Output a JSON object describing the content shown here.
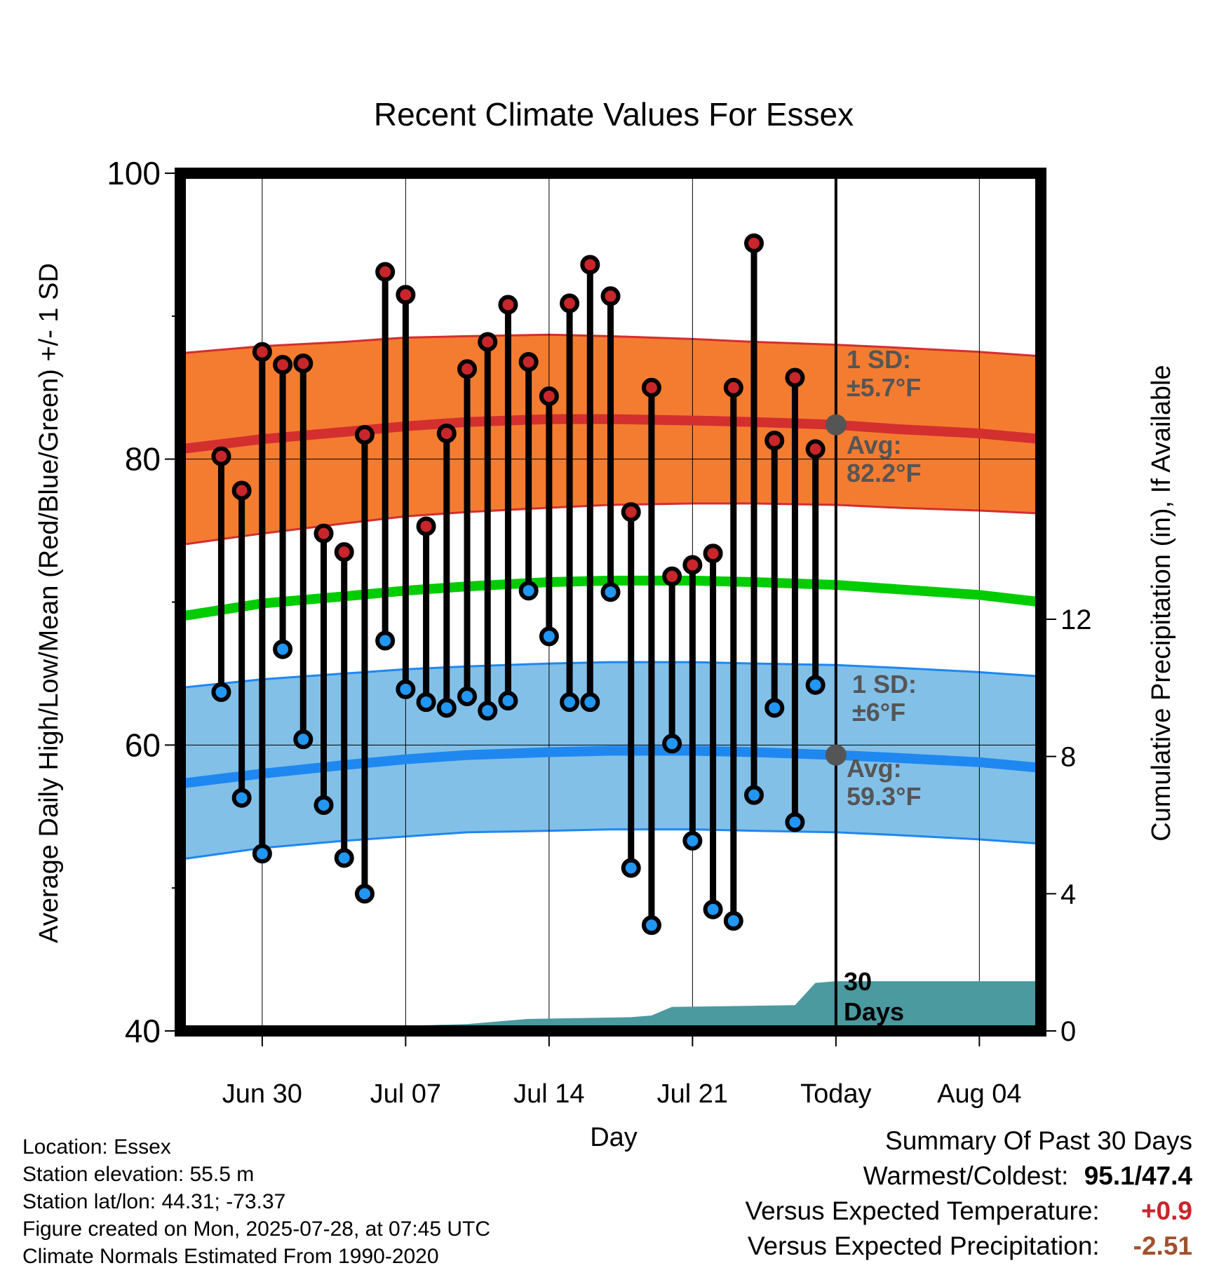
{
  "chart_data": {
    "type": "line",
    "title": "Recent Climate Values For Essex",
    "xlabel": "Day",
    "ylabel": "Average Daily High/Low/Mean (Red/Blue/Green) +/- 1 SD",
    "y2label": "Cumulative Precipitation (in), If Available",
    "ylim": [
      40,
      100
    ],
    "y2lim": [
      0,
      25
    ],
    "xlim": [
      "2025-06-26",
      "2025-08-07"
    ],
    "yticks": [
      "100",
      "80",
      "60",
      "40"
    ],
    "y2ticks": [
      "12",
      "8",
      "4",
      "0"
    ],
    "xticks": [
      {
        "date": "2025-06-30",
        "label": "Jun 30"
      },
      {
        "date": "2025-07-07",
        "label": "Jul 07"
      },
      {
        "date": "2025-07-14",
        "label": "Jul 14"
      },
      {
        "date": "2025-07-21",
        "label": "Jul 21"
      },
      {
        "date": "2025-07-28",
        "label": "Today"
      },
      {
        "date": "2025-08-04",
        "label": "Aug 04"
      }
    ],
    "today": "2025-07-28",
    "grid": true,
    "normals": {
      "dates": [
        "2025-06-26",
        "2025-06-30",
        "2025-07-04",
        "2025-07-07",
        "2025-07-10",
        "2025-07-14",
        "2025-07-17",
        "2025-07-21",
        "2025-07-24",
        "2025-07-28",
        "2025-07-31",
        "2025-08-04",
        "2025-08-07"
      ],
      "high_avg": [
        80.7,
        81.4,
        81.9,
        82.3,
        82.6,
        82.8,
        82.8,
        82.7,
        82.6,
        82.4,
        82.1,
        81.8,
        81.4
      ],
      "high_sd_upper": [
        87.4,
        87.9,
        88.2,
        88.5,
        88.6,
        88.7,
        88.6,
        88.4,
        88.2,
        88.0,
        87.8,
        87.5,
        87.2
      ],
      "high_sd_lower": [
        74.0,
        74.8,
        75.5,
        76.0,
        76.3,
        76.6,
        76.8,
        76.9,
        76.9,
        76.8,
        76.6,
        76.4,
        76.2
      ],
      "mean_avg": [
        69.0,
        69.9,
        70.4,
        70.8,
        71.1,
        71.4,
        71.5,
        71.5,
        71.4,
        71.2,
        70.9,
        70.5,
        70.0
      ],
      "low_avg": [
        57.3,
        58.0,
        58.6,
        59.0,
        59.3,
        59.5,
        59.6,
        59.6,
        59.5,
        59.3,
        59.1,
        58.8,
        58.4
      ],
      "low_sd_upper": [
        64.0,
        64.6,
        65.0,
        65.3,
        65.5,
        65.7,
        65.8,
        65.8,
        65.7,
        65.6,
        65.4,
        65.1,
        64.8
      ],
      "low_sd_lower": [
        52.0,
        52.8,
        53.3,
        53.6,
        53.9,
        54.0,
        54.1,
        54.1,
        54.0,
        53.9,
        53.7,
        53.4,
        53.1
      ]
    },
    "annotations": {
      "high_sd_line1": "1 SD:",
      "high_sd_line2": "±5.7°F",
      "high_avg_line1": "Avg:",
      "high_avg_line2": "82.2°F",
      "low_sd_line1": "1 SD:",
      "low_sd_line2": "±6°F",
      "low_avg_line1": "Avg:",
      "low_avg_line2": "59.3°F",
      "precip_line1": "30",
      "precip_line2": "Days"
    },
    "daily": {
      "dates": [
        "2025-06-28",
        "2025-06-29",
        "2025-06-30",
        "2025-07-01",
        "2025-07-02",
        "2025-07-03",
        "2025-07-04",
        "2025-07-05",
        "2025-07-06",
        "2025-07-07",
        "2025-07-08",
        "2025-07-09",
        "2025-07-10",
        "2025-07-11",
        "2025-07-12",
        "2025-07-13",
        "2025-07-14",
        "2025-07-15",
        "2025-07-16",
        "2025-07-17",
        "2025-07-18",
        "2025-07-19",
        "2025-07-20",
        "2025-07-21",
        "2025-07-22",
        "2025-07-23",
        "2025-07-24",
        "2025-07-25",
        "2025-07-26",
        "2025-07-27"
      ],
      "highs": [
        80.2,
        77.8,
        87.5,
        86.6,
        86.7,
        74.8,
        73.5,
        81.7,
        93.1,
        91.5,
        75.3,
        81.8,
        86.3,
        88.2,
        90.8,
        86.8,
        84.4,
        90.9,
        93.6,
        91.4,
        76.3,
        85.0,
        71.8,
        72.6,
        73.4,
        85.0,
        95.1,
        81.3,
        85.7,
        80.7
      ],
      "lows": [
        63.7,
        56.3,
        52.4,
        66.7,
        60.4,
        55.8,
        52.1,
        49.6,
        67.3,
        63.9,
        63.0,
        62.6,
        63.4,
        62.4,
        63.1,
        70.8,
        67.6,
        63.0,
        63.0,
        70.7,
        51.4,
        47.4,
        60.1,
        53.3,
        48.5,
        47.7,
        56.5,
        62.6,
        54.6,
        64.2
      ]
    },
    "precip": {
      "dates": [
        "2025-06-26",
        "2025-06-30",
        "2025-07-02",
        "2025-07-07",
        "2025-07-10",
        "2025-07-12",
        "2025-07-13",
        "2025-07-18",
        "2025-07-19",
        "2025-07-20",
        "2025-07-26",
        "2025-07-27",
        "2025-07-28",
        "2025-08-07"
      ],
      "values": [
        0.05,
        0.05,
        0.1,
        0.15,
        0.2,
        0.3,
        0.35,
        0.4,
        0.45,
        0.7,
        0.75,
        1.4,
        1.45,
        1.45
      ]
    }
  },
  "info": {
    "location": "Location: Essex",
    "elevation": "Station elevation: 55.5 m",
    "latlon": "Station lat/lon: 44.31; -73.37",
    "created": "Figure created on Mon, 2025-07-28, at 07:45 UTC",
    "normals": "Climate Normals Estimated From 1990-2020"
  },
  "summary": {
    "title": "Summary Of Past 30 Days",
    "warm_label": "Warmest/Coldest:",
    "warm_value": "95.1/47.4",
    "temp_label": "Versus Expected Temperature:",
    "temp_value": "+0.9",
    "precip_label": "Versus Expected Precipitation:",
    "precip_value": "-2.51"
  },
  "colors": {
    "high_sd_band": "#f47c30",
    "high_line": "#d32f2f",
    "low_sd_band": "#82c0e8",
    "low_line": "#1e88f0",
    "mean_line": "#00cc00",
    "precip_fill": "#4a9aa0",
    "high_dot": "#c8262b",
    "low_dot": "#2196f3",
    "annotation": "#555555",
    "temp_value": "#c8262b",
    "precip_value": "#a0522d"
  }
}
